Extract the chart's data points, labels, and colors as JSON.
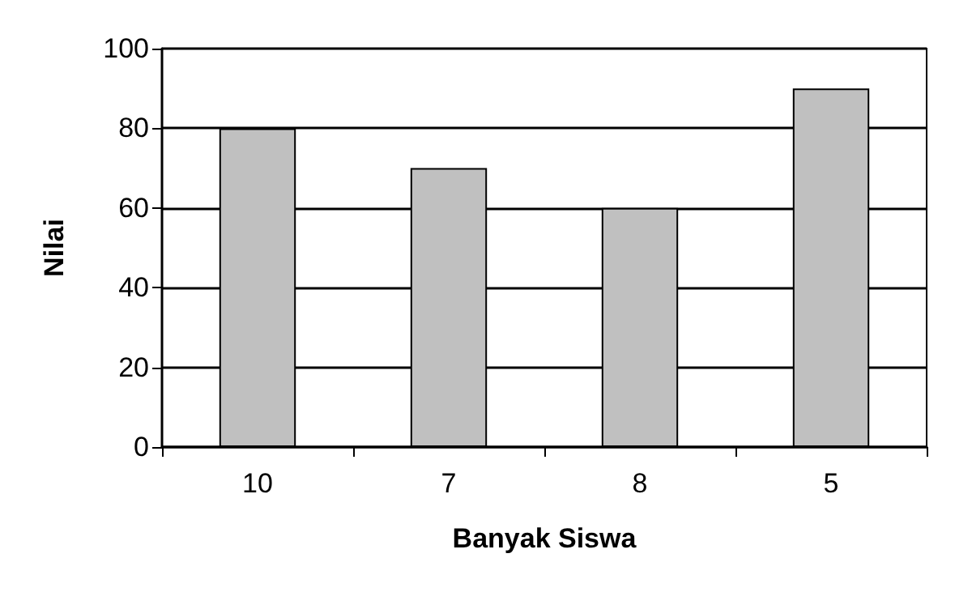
{
  "chart_data": {
    "type": "bar",
    "xlabel": "Banyak Siswa",
    "ylabel": "Nilai",
    "categories": [
      "10",
      "7",
      "8",
      "5"
    ],
    "values": [
      80,
      70,
      60,
      90
    ],
    "color": "#c0c0c0",
    "ylim": [
      0,
      100
    ],
    "yticks": [
      0,
      20,
      40,
      60,
      80,
      100
    ],
    "grid": "y"
  }
}
